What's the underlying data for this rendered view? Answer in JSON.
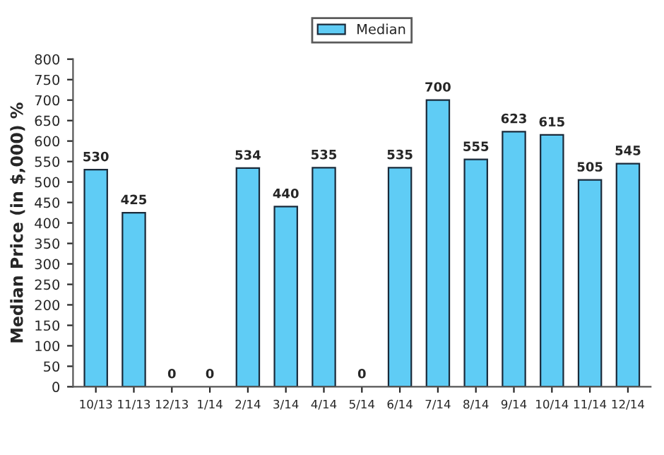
{
  "chart_data": {
    "type": "bar",
    "ylabel": "Median Price (in $,000) %",
    "categories": [
      "10/13",
      "11/13",
      "12/13",
      "1/14",
      "2/14",
      "3/14",
      "4/14",
      "5/14",
      "6/14",
      "7/14",
      "8/14",
      "9/14",
      "10/14",
      "11/14",
      "12/14"
    ],
    "series": [
      {
        "name": "Median",
        "color": "#5fccf5",
        "values": [
          530,
          425,
          0,
          0,
          534,
          440,
          535,
          0,
          535,
          700,
          555,
          623,
          615,
          505,
          545
        ]
      }
    ],
    "ylim": [
      0,
      800
    ],
    "yticks": [
      0,
      50,
      100,
      150,
      200,
      250,
      300,
      350,
      400,
      450,
      500,
      550,
      600,
      650,
      700,
      750,
      800
    ],
    "data_labels": true,
    "legend": "top",
    "grid": false
  }
}
